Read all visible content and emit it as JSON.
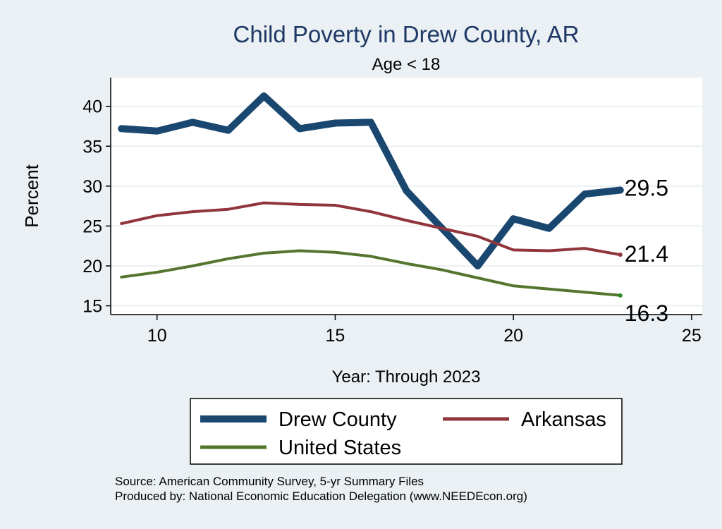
{
  "chart_data": {
    "type": "line",
    "title": "Child Poverty in Drew County, AR",
    "subtitle": "Age < 18",
    "xlabel": "Year: Through 2023",
    "ylabel": "Percent",
    "xlim": [
      8.7,
      25.3
    ],
    "ylim": [
      13.9,
      43.6
    ],
    "xticks": [
      10,
      15,
      20,
      25
    ],
    "yticks": [
      15,
      20,
      25,
      30,
      35,
      40
    ],
    "grid": "horizontal",
    "x": [
      9,
      10,
      11,
      12,
      13,
      14,
      15,
      16,
      17,
      18,
      19,
      20,
      21,
      22,
      23
    ],
    "series": [
      {
        "name": "Drew County",
        "color": "#1a476f",
        "values": [
          37.2,
          36.9,
          38.0,
          37.0,
          41.3,
          37.2,
          37.9,
          38.0,
          29.4,
          24.7,
          20.0,
          25.9,
          24.7,
          29.0,
          29.5
        ],
        "end_label": "29.5"
      },
      {
        "name": "Arkansas",
        "color": "#90353b",
        "values": [
          25.3,
          26.3,
          26.8,
          27.1,
          27.9,
          27.7,
          27.6,
          26.8,
          25.7,
          24.7,
          23.7,
          22.0,
          21.9,
          22.2,
          21.4
        ],
        "end_label": "21.4"
      },
      {
        "name": "United States",
        "color": "#55752f",
        "values": [
          18.6,
          19.2,
          20.0,
          20.9,
          21.6,
          21.9,
          21.7,
          21.2,
          20.3,
          19.5,
          18.5,
          17.5,
          17.1,
          16.7,
          16.3
        ],
        "end_label": "16.3"
      }
    ],
    "legend": {
      "position": "bottom",
      "entries": [
        "Drew County",
        "Arkansas",
        "United States"
      ]
    },
    "notes": [
      "Source: American Community Survey, 5-yr Summary Files",
      "Produced by: National Economic Education Delegation (www.NEEDEcon.org)"
    ]
  }
}
